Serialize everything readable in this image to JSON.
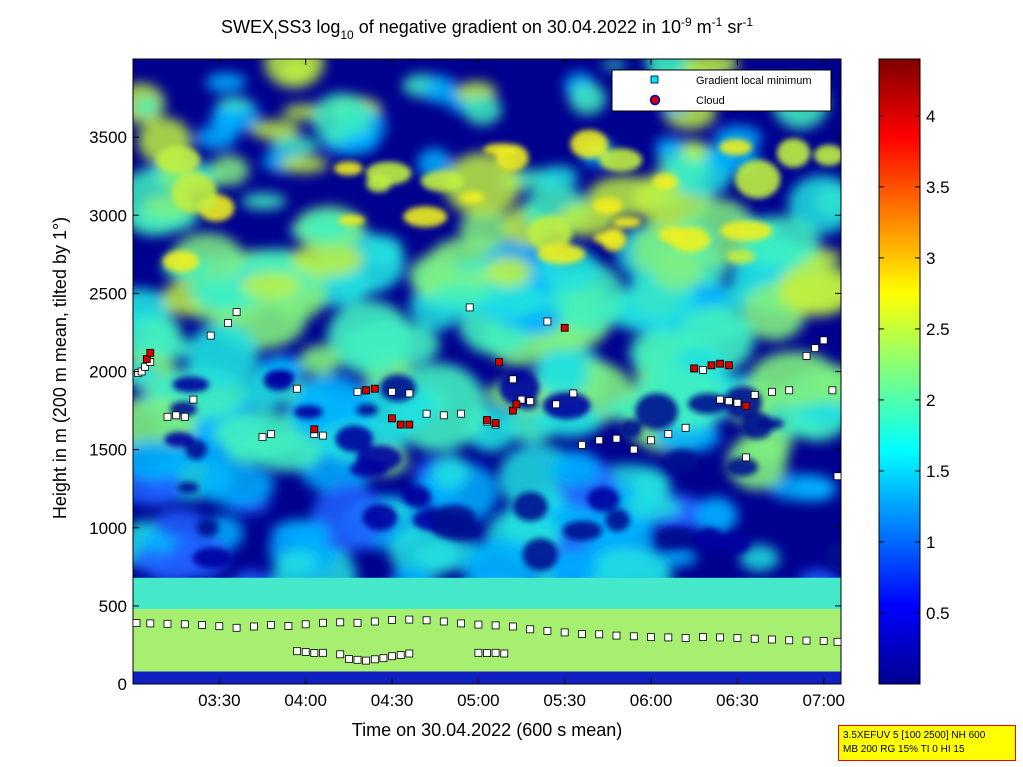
{
  "chart_data": {
    "type": "heatmap",
    "title": {
      "part1": "SWEX",
      "sub1": "I",
      "part2": "SS3 log",
      "sub2": "10",
      "part3": " of negative gradient on 30.04.2022 in 10",
      "sup1": "-9",
      "part4": " m",
      "sup2": "-1",
      "part5": " sr",
      "sup3": "-1"
    },
    "xlabel": "Time on 30.04.2022 (600 s mean)",
    "ylabel": "Height in m (200 m mean, tilted by 1°)",
    "xlim_hours": [
      3.0,
      7.1
    ],
    "ylim": [
      0,
      4000
    ],
    "x_ticks": [
      {
        "value": 3.5,
        "label": "03:30"
      },
      {
        "value": 4.0,
        "label": "04:00"
      },
      {
        "value": 4.5,
        "label": "04:30"
      },
      {
        "value": 5.0,
        "label": "05:00"
      },
      {
        "value": 5.5,
        "label": "05:30"
      },
      {
        "value": 6.0,
        "label": "06:00"
      },
      {
        "value": 6.5,
        "label": "06:30"
      },
      {
        "value": 7.0,
        "label": "07:00"
      }
    ],
    "y_ticks": [
      {
        "value": 0,
        "label": "0"
      },
      {
        "value": 500,
        "label": "500"
      },
      {
        "value": 1000,
        "label": "1000"
      },
      {
        "value": 1500,
        "label": "1500"
      },
      {
        "value": 2000,
        "label": "2000"
      },
      {
        "value": 2500,
        "label": "2500"
      },
      {
        "value": 3000,
        "label": "3000"
      },
      {
        "value": 3500,
        "label": "3500"
      }
    ],
    "colorbar": {
      "range": [
        0,
        4.4
      ],
      "ticks": [
        {
          "value": 0.5,
          "label": "0.5"
        },
        {
          "value": 1,
          "label": "1"
        },
        {
          "value": 1.5,
          "label": "1.5"
        },
        {
          "value": 2,
          "label": "2"
        },
        {
          "value": 2.5,
          "label": "2.5"
        },
        {
          "value": 3,
          "label": "3"
        },
        {
          "value": 3.5,
          "label": "3.5"
        },
        {
          "value": 4,
          "label": "4"
        }
      ],
      "colormap": "jet"
    },
    "legend": {
      "position": "top-right",
      "entries": [
        {
          "label": "Gradient local minimum",
          "color": "#00e5ff",
          "marker": "square"
        },
        {
          "label": "Cloud",
          "color": "#d40000",
          "marker": "circle"
        }
      ]
    },
    "series": [
      {
        "name": "Gradient local minimum",
        "points": [
          [
            3.02,
            390
          ],
          [
            3.1,
            388
          ],
          [
            3.2,
            385
          ],
          [
            3.3,
            382
          ],
          [
            3.4,
            378
          ],
          [
            3.5,
            370
          ],
          [
            3.6,
            360
          ],
          [
            3.7,
            368
          ],
          [
            3.8,
            378
          ],
          [
            3.9,
            372
          ],
          [
            4.0,
            382
          ],
          [
            4.1,
            392
          ],
          [
            4.2,
            395
          ],
          [
            4.3,
            392
          ],
          [
            4.4,
            400
          ],
          [
            4.5,
            410
          ],
          [
            4.6,
            412
          ],
          [
            4.7,
            408
          ],
          [
            4.8,
            400
          ],
          [
            4.9,
            388
          ],
          [
            5.0,
            380
          ],
          [
            5.1,
            375
          ],
          [
            5.2,
            368
          ],
          [
            5.3,
            350
          ],
          [
            5.4,
            340
          ],
          [
            5.5,
            330
          ],
          [
            5.6,
            320
          ],
          [
            5.7,
            318
          ],
          [
            5.8,
            310
          ],
          [
            5.9,
            305
          ],
          [
            6.0,
            300
          ],
          [
            6.1,
            298
          ],
          [
            6.2,
            295
          ],
          [
            6.3,
            300
          ],
          [
            6.4,
            298
          ],
          [
            6.5,
            295
          ],
          [
            6.6,
            290
          ],
          [
            6.7,
            285
          ],
          [
            6.8,
            280
          ],
          [
            6.9,
            278
          ],
          [
            7.0,
            275
          ],
          [
            7.08,
            270
          ],
          [
            3.95,
            210
          ],
          [
            4.0,
            205
          ],
          [
            4.05,
            198
          ],
          [
            4.1,
            200
          ],
          [
            4.2,
            190
          ],
          [
            4.25,
            160
          ],
          [
            4.3,
            155
          ],
          [
            4.35,
            150
          ],
          [
            4.4,
            158
          ],
          [
            4.45,
            165
          ],
          [
            4.5,
            178
          ],
          [
            4.55,
            185
          ],
          [
            4.6,
            195
          ],
          [
            5.0,
            200
          ],
          [
            5.05,
            198
          ],
          [
            5.1,
            200
          ],
          [
            5.15,
            195
          ],
          [
            3.03,
            1990
          ],
          [
            3.05,
            2000
          ],
          [
            3.07,
            2030
          ],
          [
            3.1,
            2060
          ],
          [
            3.2,
            1710
          ],
          [
            3.25,
            1720
          ],
          [
            3.3,
            1710
          ],
          [
            3.35,
            1820
          ],
          [
            3.45,
            2230
          ],
          [
            3.55,
            2310
          ],
          [
            3.6,
            2380
          ],
          [
            3.75,
            1580
          ],
          [
            3.8,
            1600
          ],
          [
            3.95,
            1890
          ],
          [
            4.05,
            1600
          ],
          [
            4.1,
            1590
          ],
          [
            4.3,
            1870
          ],
          [
            4.35,
            1880
          ],
          [
            4.5,
            1870
          ],
          [
            4.6,
            1860
          ],
          [
            4.7,
            1730
          ],
          [
            4.8,
            1720
          ],
          [
            4.9,
            1730
          ],
          [
            4.95,
            2410
          ],
          [
            5.05,
            1680
          ],
          [
            5.1,
            1660
          ],
          [
            5.2,
            1950
          ],
          [
            5.25,
            1820
          ],
          [
            5.3,
            1810
          ],
          [
            5.4,
            2320
          ],
          [
            5.45,
            1790
          ],
          [
            5.55,
            1860
          ],
          [
            5.6,
            1530
          ],
          [
            5.7,
            1560
          ],
          [
            5.8,
            1570
          ],
          [
            5.9,
            1500
          ],
          [
            6.0,
            1560
          ],
          [
            6.1,
            1600
          ],
          [
            6.2,
            1640
          ],
          [
            6.25,
            2020
          ],
          [
            6.3,
            2010
          ],
          [
            6.4,
            1820
          ],
          [
            6.45,
            1810
          ],
          [
            6.5,
            1800
          ],
          [
            6.55,
            1450
          ],
          [
            6.6,
            1850
          ],
          [
            6.7,
            1870
          ],
          [
            6.8,
            1880
          ],
          [
            6.9,
            2100
          ],
          [
            6.95,
            2150
          ],
          [
            7.0,
            2200
          ],
          [
            7.05,
            1880
          ],
          [
            7.08,
            1330
          ]
        ]
      },
      {
        "name": "Cloud",
        "points": [
          [
            3.08,
            2080
          ],
          [
            3.1,
            2120
          ],
          [
            4.05,
            1630
          ],
          [
            4.35,
            1880
          ],
          [
            4.4,
            1890
          ],
          [
            4.5,
            1700
          ],
          [
            4.55,
            1660
          ],
          [
            4.6,
            1660
          ],
          [
            5.05,
            1690
          ],
          [
            5.1,
            1670
          ],
          [
            5.12,
            2060
          ],
          [
            5.2,
            1750
          ],
          [
            5.22,
            1790
          ],
          [
            5.5,
            2280
          ],
          [
            6.25,
            2020
          ],
          [
            6.35,
            2040
          ],
          [
            6.4,
            2050
          ],
          [
            6.45,
            2040
          ],
          [
            6.55,
            1780
          ]
        ]
      }
    ]
  },
  "info_box": {
    "line1": "3.5XEFUV 5 [100 2500] NH 600",
    "line2": "MB 200 RG 15% TI 0 HI 15"
  }
}
